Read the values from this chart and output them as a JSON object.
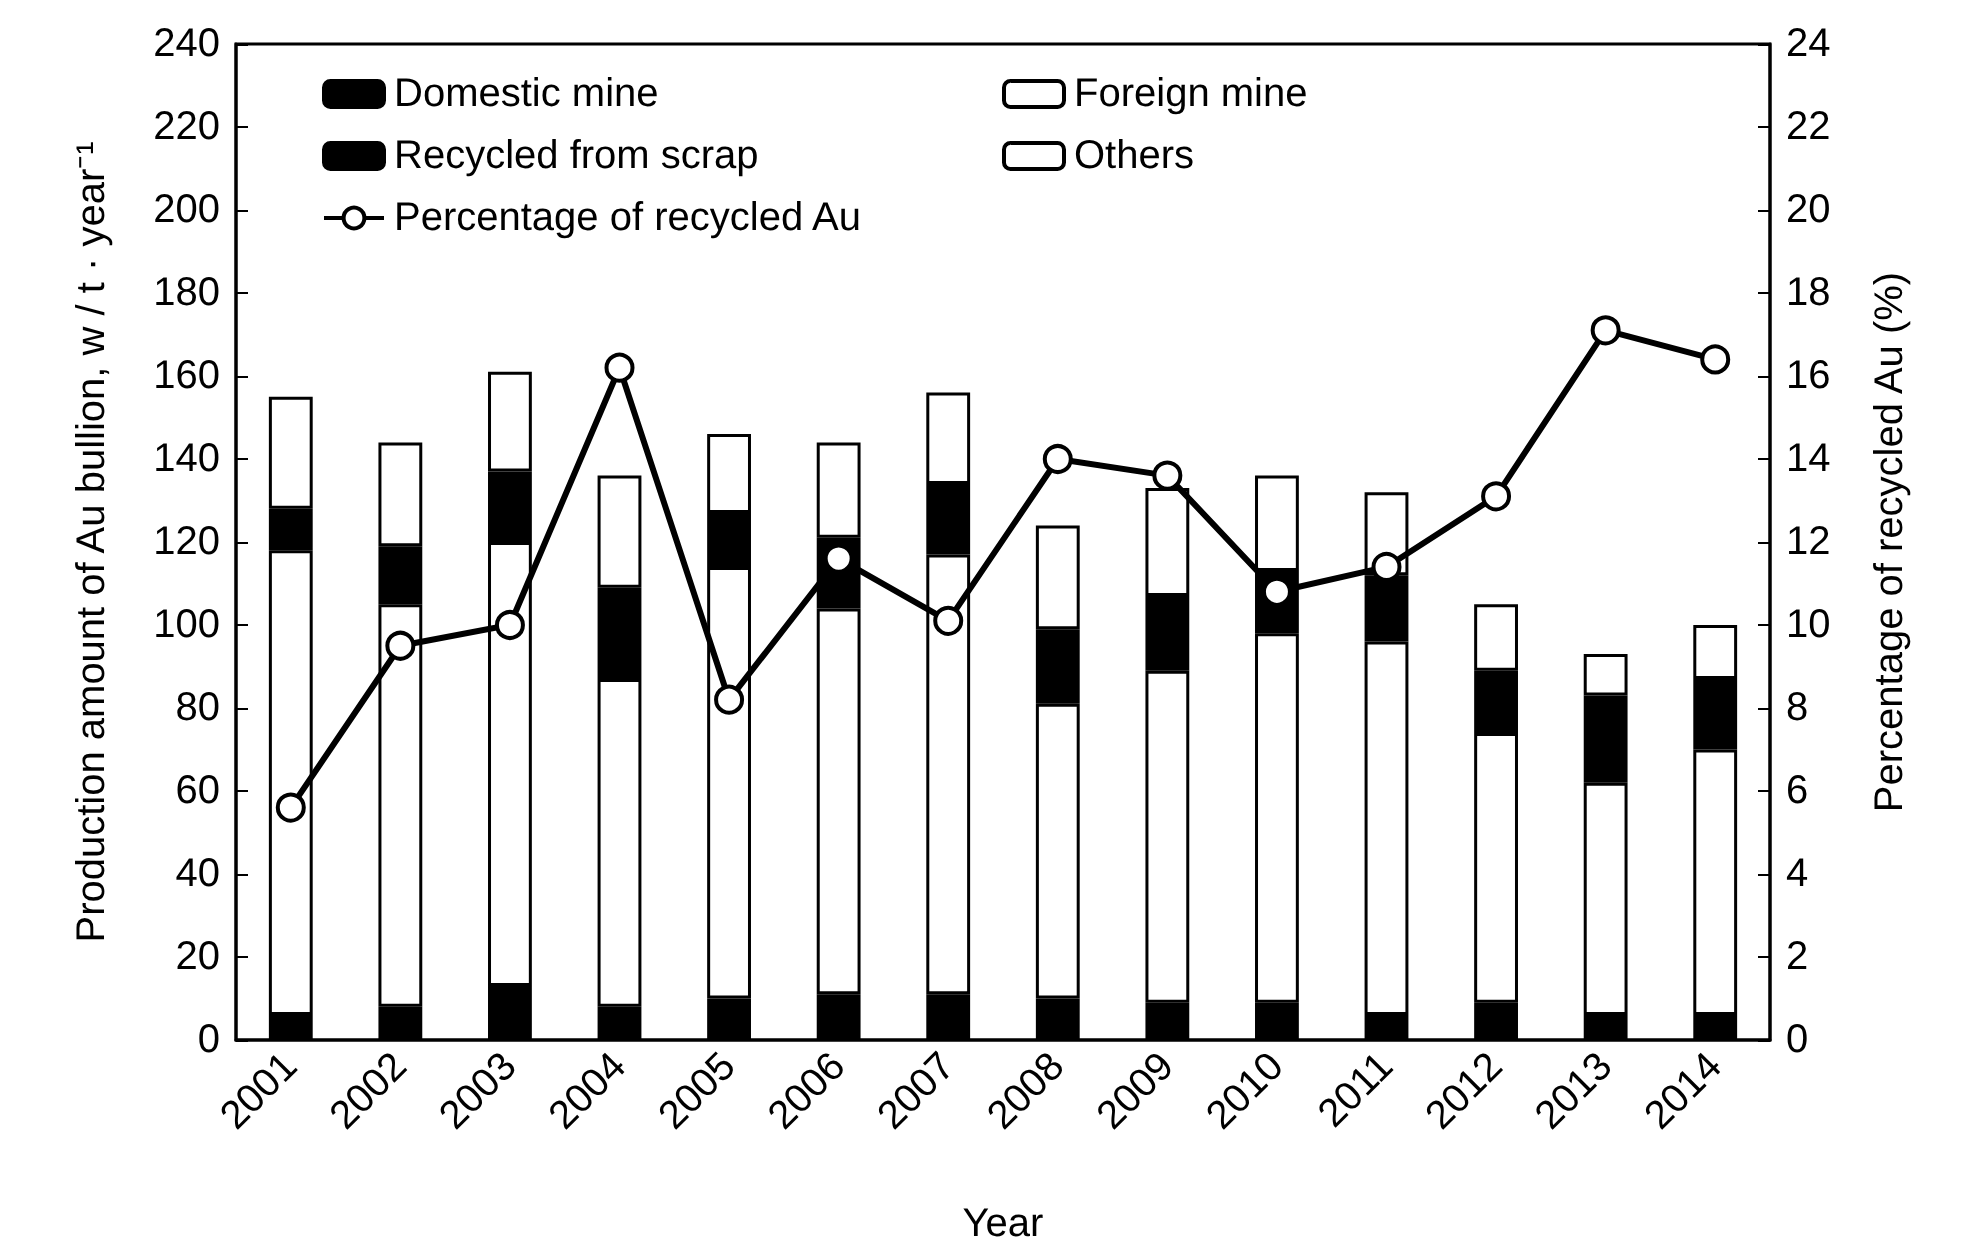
{
  "chart_data": {
    "type": "bar",
    "stacked": true,
    "xlabel": "Year",
    "ylabel": "Production amount of Au bullion, w / t · year⁻¹",
    "y2label": "Percentage of recycled Au (%)",
    "categories": [
      "2001",
      "2002",
      "2003",
      "2004",
      "2005",
      "2006",
      "2007",
      "2008",
      "2009",
      "2010",
      "2011",
      "2012",
      "2013",
      "2014"
    ],
    "series": [
      {
        "name": "Domestic mine",
        "color": "#000000",
        "values": [
          6,
          8,
          13,
          8,
          10,
          11,
          11,
          10,
          9,
          9,
          6,
          9,
          6,
          6
        ]
      },
      {
        "name": "Foreign mine",
        "color": "#ffffff",
        "values": [
          112,
          97,
          107,
          79,
          104,
          93,
          106,
          71,
          80,
          89,
          90,
          65,
          56,
          64
        ]
      },
      {
        "name": "Recycled from scrap",
        "color": "#000000",
        "values": [
          10,
          14,
          17,
          22,
          13,
          17,
          17,
          18,
          18,
          15,
          16,
          15,
          21,
          17
        ]
      },
      {
        "name": "Others",
        "color": "#ffffff",
        "values": [
          27,
          25,
          24,
          27,
          19,
          23,
          22,
          25,
          26,
          23,
          20,
          16,
          10,
          13
        ]
      },
      {
        "name": "Percentage of recycled Au",
        "type": "line",
        "axis": "y2",
        "color": "#000000",
        "marker": "circle",
        "line_style": "solid",
        "values": [
          5.6,
          9.5,
          10.0,
          16.2,
          8.2,
          11.6,
          10.1,
          14.0,
          13.6,
          10.8,
          11.4,
          13.1,
          17.1,
          16.4
        ]
      }
    ],
    "ylim": [
      0,
      240
    ],
    "yticks": [
      0,
      20,
      40,
      60,
      80,
      100,
      120,
      140,
      160,
      180,
      200,
      220,
      240
    ],
    "y2lim": [
      0,
      24
    ],
    "y2ticks": [
      0,
      2,
      4,
      6,
      8,
      10,
      12,
      14,
      16,
      18,
      20,
      22,
      24
    ],
    "grid": false,
    "legend": "top left"
  }
}
